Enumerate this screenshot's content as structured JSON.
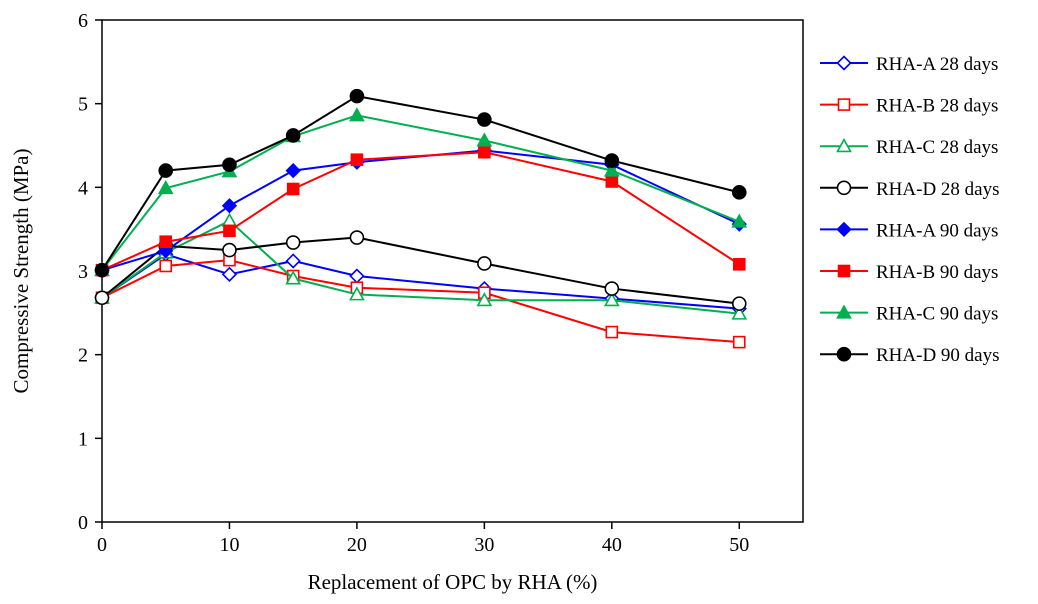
{
  "chart_data": {
    "type": "line",
    "title": "",
    "xlabel": "Replacement of OPC by RHA (%)",
    "ylabel": "Compressive Strength (MPa)",
    "xlim": [
      0,
      55
    ],
    "ylim": [
      0,
      6
    ],
    "x_ticks": [
      0,
      10,
      20,
      30,
      40,
      50
    ],
    "y_ticks": [
      0,
      1,
      2,
      3,
      4,
      5,
      6
    ],
    "grid": false,
    "legend_position": "right",
    "x": [
      0,
      5,
      10,
      15,
      20,
      30,
      40,
      50
    ],
    "series": [
      {
        "name": "RHA-A 28 days",
        "color": "#0000ff",
        "marker": "diamond",
        "filled": false,
        "values": [
          2.68,
          3.2,
          2.96,
          3.12,
          2.94,
          2.79,
          2.67,
          2.55
        ]
      },
      {
        "name": "RHA-B 28 days",
        "color": "#ff0000",
        "marker": "square",
        "filled": false,
        "values": [
          2.68,
          3.06,
          3.13,
          2.94,
          2.8,
          2.74,
          2.27,
          2.15
        ]
      },
      {
        "name": "RHA-C 28 days",
        "color": "#00b050",
        "marker": "triangle",
        "filled": false,
        "values": [
          2.68,
          3.22,
          3.6,
          2.91,
          2.72,
          2.65,
          2.65,
          2.49
        ]
      },
      {
        "name": "RHA-D 28 days",
        "color": "#000000",
        "marker": "circle",
        "filled": false,
        "values": [
          2.68,
          3.3,
          3.25,
          3.34,
          3.4,
          3.09,
          2.79,
          2.61
        ]
      },
      {
        "name": "RHA-A 90 days",
        "color": "#0000ff",
        "marker": "diamond",
        "filled": true,
        "values": [
          3.01,
          3.24,
          3.78,
          4.2,
          4.3,
          4.44,
          4.27,
          3.56
        ]
      },
      {
        "name": "RHA-B 90 days",
        "color": "#ff0000",
        "marker": "square",
        "filled": true,
        "values": [
          3.01,
          3.35,
          3.48,
          3.98,
          4.33,
          4.42,
          4.07,
          3.08
        ]
      },
      {
        "name": "RHA-C 90 days",
        "color": "#00b050",
        "marker": "triangle",
        "filled": true,
        "values": [
          3.01,
          3.99,
          4.19,
          4.61,
          4.86,
          4.56,
          4.2,
          3.59
        ]
      },
      {
        "name": "RHA-D 90 days",
        "color": "#000000",
        "marker": "circle",
        "filled": true,
        "values": [
          3.01,
          4.2,
          4.27,
          4.62,
          5.09,
          4.81,
          4.32,
          3.94
        ]
      }
    ]
  }
}
